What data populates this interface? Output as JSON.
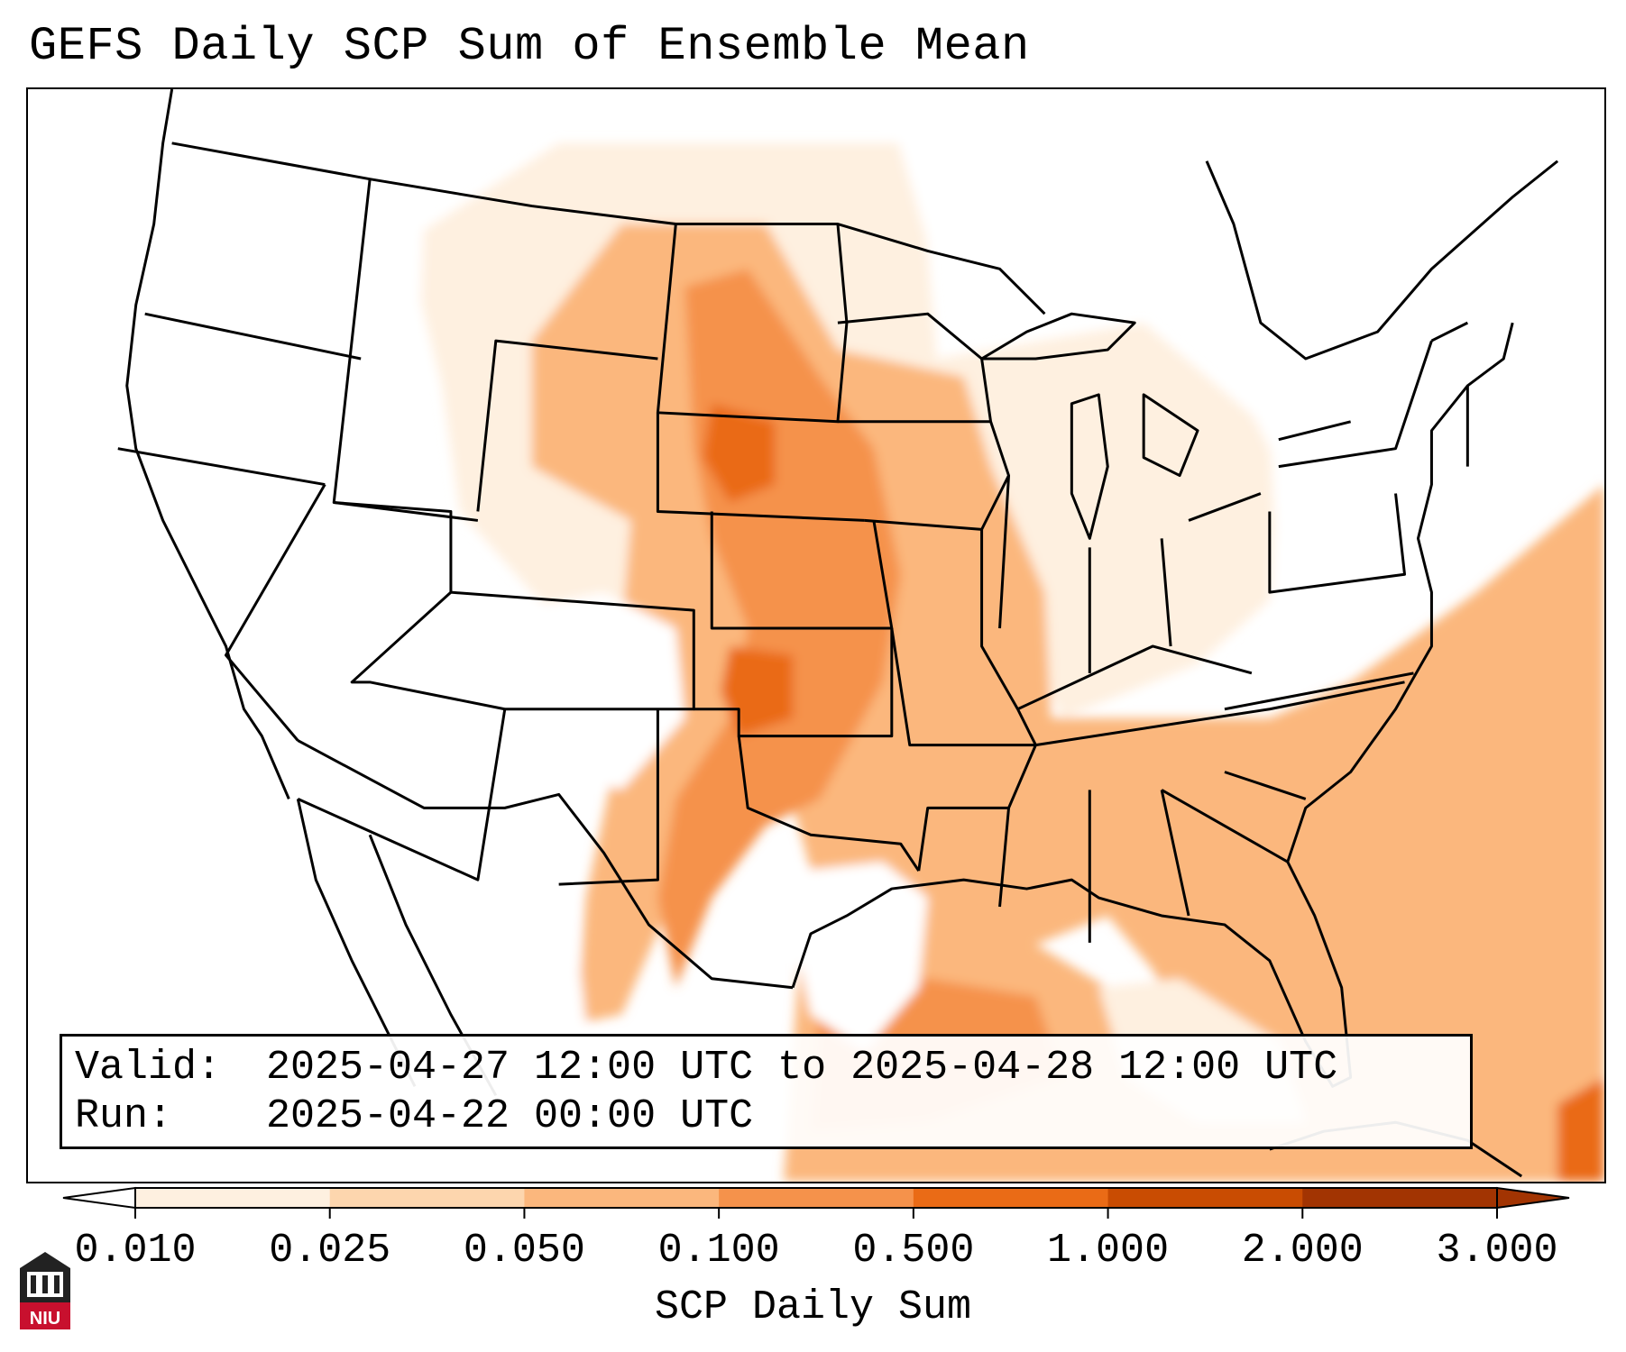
{
  "title": "GEFS Daily SCP Sum of Ensemble Mean",
  "info": {
    "valid_label": "Valid:",
    "valid_value": "2025-04-27 12:00 UTC to 2025-04-28 12:00 UTC",
    "run_label": "Run:",
    "run_value": "2025-04-22 00:00 UTC"
  },
  "colorbar": {
    "title": "SCP Daily Sum",
    "ticks": [
      "0.010",
      "0.025",
      "0.050",
      "0.100",
      "0.500",
      "1.000",
      "2.000",
      "3.000"
    ],
    "colors": [
      "#ffffff",
      "#fef0e0",
      "#fdd6ae",
      "#fbb77d",
      "#f5924b",
      "#ea6b16",
      "#c94c02",
      "#a23402"
    ],
    "extend": "both"
  },
  "logo": {
    "text": "NIU",
    "colors": {
      "red": "#c8102e",
      "dark": "#222222"
    }
  }
}
